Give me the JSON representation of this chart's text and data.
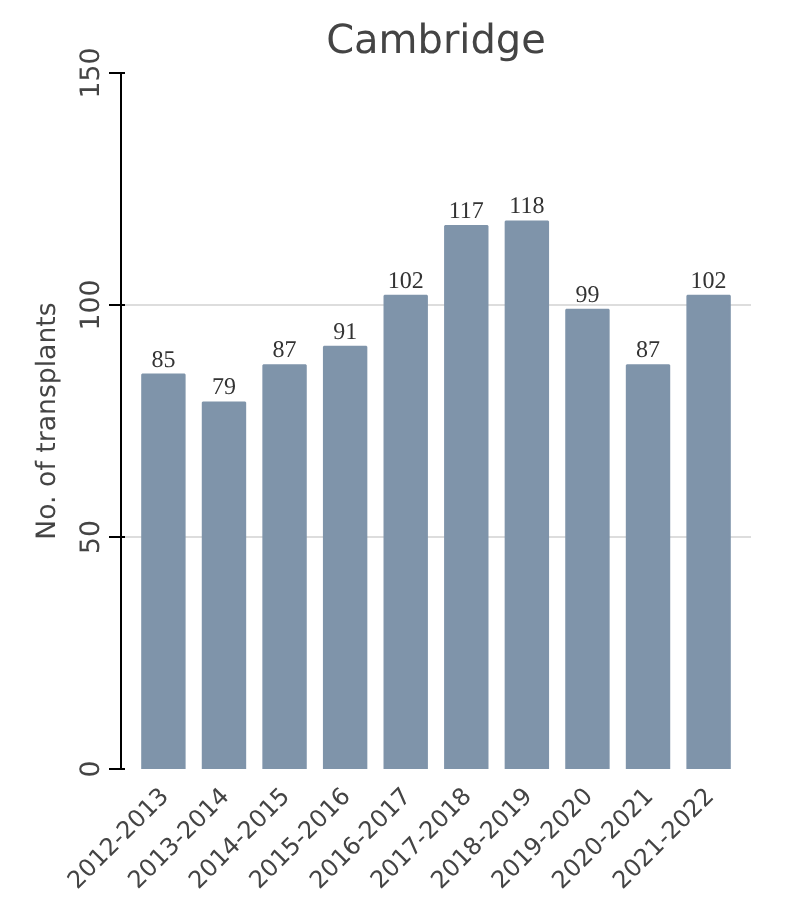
{
  "chart_data": {
    "type": "bar",
    "title": "Cambridge",
    "ylabel": "No. of transplants",
    "categories": [
      "2012-2013",
      "2013-2014",
      "2014-2015",
      "2015-2016",
      "2016-2017",
      "2017-2018",
      "2018-2019",
      "2019-2020",
      "2020-2021",
      "2021-2022"
    ],
    "values": [
      85,
      79,
      87,
      91,
      102,
      117,
      118,
      99,
      87,
      102
    ],
    "color": "#7f94aa",
    "ylim": [
      0,
      150
    ],
    "yticks": [
      0,
      50,
      100,
      150
    ],
    "grid": "y",
    "data_labels": true
  }
}
